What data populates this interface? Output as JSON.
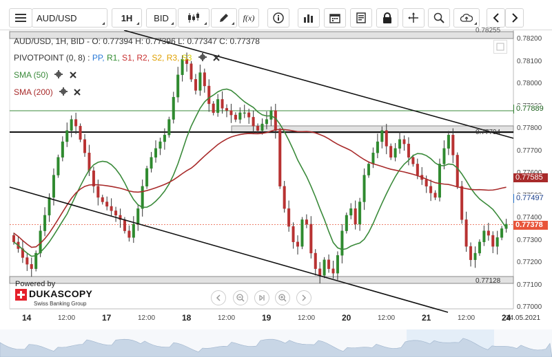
{
  "toolbar": {
    "symbol": "AUD/USD",
    "timeframe": "1H",
    "side": "BID",
    "fx_label": "f(x)"
  },
  "legend": {
    "ohlc": "AUD/USD, 1H, BID - O: 0.77394 H: 0.77396 L: 0.77347 C: 0.77378",
    "pivot_name": "PIVOTPOINT (0, 8)",
    "pivot_sep": ":",
    "pivot_items": [
      {
        "label": "PP,",
        "color": "#2a7ad8"
      },
      {
        "label": "R1,",
        "color": "#2e8b2e"
      },
      {
        "label": "S1,",
        "color": "#c83030"
      },
      {
        "label": "R2,",
        "color": "#c83030"
      },
      {
        "label": "S2,",
        "color": "#e0a000"
      },
      {
        "label": "R3,",
        "color": "#e0a000"
      },
      {
        "label": "S3",
        "color": "#d8d000"
      }
    ],
    "sma50": "SMA (50)",
    "sma200": "SMA (200)"
  },
  "colors": {
    "sma50": "#3a8a3a",
    "sma200": "#a82a2a",
    "bull": "#2f8a2f",
    "bear": "#b83232",
    "current": "#e8553a",
    "sma50_tag": "#2a7ad8"
  },
  "yaxis_ticks": [
    "0.78200",
    "0.78100",
    "0.78000",
    "0.77900",
    "0.77800",
    "0.77700",
    "0.77600",
    "0.77500",
    "0.77400",
    "0.77300",
    "0.77200",
    "0.77100",
    "0.77000"
  ],
  "price_tags": {
    "r1": "0.77889",
    "sma200": "0.77585",
    "sma50": "0.77497",
    "current": "0.77378",
    "top_level": "0.78255",
    "pp_level": "0.77794",
    "bottom_level": "0.77128"
  },
  "xaxis_ticks": [
    {
      "label": "14",
      "bold": true
    },
    {
      "label": "12:00",
      "bold": false
    },
    {
      "label": "17",
      "bold": true
    },
    {
      "label": "12:00",
      "bold": false
    },
    {
      "label": "18",
      "bold": true
    },
    {
      "label": "12:00",
      "bold": false
    },
    {
      "label": "19",
      "bold": true
    },
    {
      "label": "12:00",
      "bold": false
    },
    {
      "label": "20",
      "bold": true
    },
    {
      "label": "12:00",
      "bold": false
    },
    {
      "label": "21",
      "bold": true
    },
    {
      "label": "12:00",
      "bold": false
    },
    {
      "label": "24",
      "bold": true
    }
  ],
  "date_label": "24.05.2021",
  "branding": {
    "powered": "Powered by",
    "name": "DUKASCOPY",
    "sub": "Swiss Banking Group"
  },
  "chart_data": {
    "type": "candlestick",
    "symbol": "AUD/USD",
    "timeframe": "1H",
    "ylim": [
      0.77,
      0.7825
    ],
    "last_ohlc": {
      "open": 0.77394,
      "high": 0.77396,
      "low": 0.77347,
      "close": 0.77378
    },
    "series": [
      {
        "name": "SMA (50)",
        "last": 0.77497
      },
      {
        "name": "SMA (200)",
        "last": 0.77585
      }
    ],
    "levels": [
      0.78255,
      0.77889,
      0.77794,
      0.77128
    ],
    "closes": [
      0.773,
      0.7727,
      0.7723,
      0.772,
      0.7718,
      0.7725,
      0.7735,
      0.7742,
      0.775,
      0.776,
      0.7768,
      0.7775,
      0.778,
      0.7785,
      0.7782,
      0.7776,
      0.777,
      0.7762,
      0.7755,
      0.775,
      0.7748,
      0.7746,
      0.7744,
      0.7742,
      0.774,
      0.7735,
      0.7732,
      0.7738,
      0.7745,
      0.7755,
      0.7763,
      0.7768,
      0.7772,
      0.7775,
      0.7778,
      0.7785,
      0.7795,
      0.7805,
      0.7812,
      0.781,
      0.7803,
      0.7798,
      0.7806,
      0.78,
      0.7792,
      0.7788,
      0.7794,
      0.779,
      0.7789,
      0.7787,
      0.7785,
      0.7788,
      0.7788,
      0.7786,
      0.7782,
      0.778,
      0.7783,
      0.7785,
      0.7789,
      0.778,
      0.7755,
      0.7745,
      0.7737,
      0.773,
      0.7728,
      0.774,
      0.7738,
      0.7725,
      0.7718,
      0.7715,
      0.7722,
      0.7718,
      0.7716,
      0.7724,
      0.7735,
      0.7742,
      0.7745,
      0.7738,
      0.7748,
      0.776,
      0.7765,
      0.777,
      0.7775,
      0.778,
      0.7773,
      0.7768,
      0.7772,
      0.7776,
      0.7774,
      0.7768,
      0.7765,
      0.776,
      0.7758,
      0.7755,
      0.7752,
      0.775,
      0.7765,
      0.7772,
      0.7778,
      0.7769,
      0.7755,
      0.774,
      0.7728,
      0.7722,
      0.7725,
      0.773,
      0.7735,
      0.7733,
      0.7728,
      0.7732,
      0.7736,
      0.7738
    ]
  }
}
